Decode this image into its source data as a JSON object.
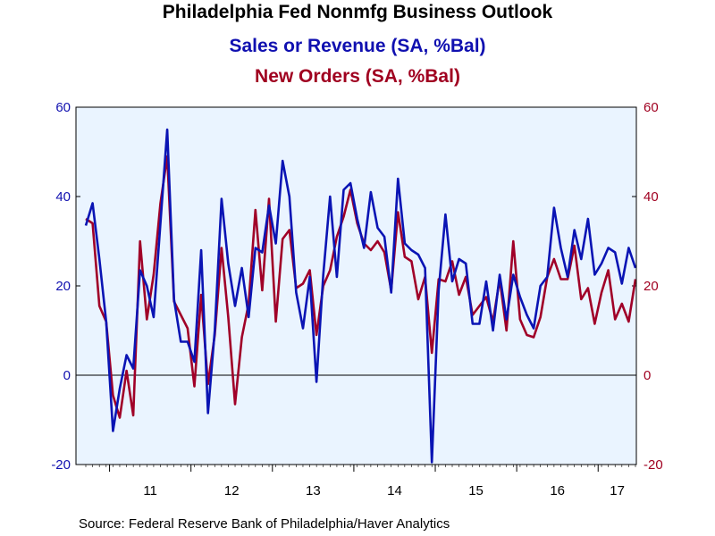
{
  "titles": {
    "main": "Philadelphia Fed Nonmfg Business Outlook",
    "series1": "Sales or Revenue (SA, %Bal)",
    "series2": "New Orders (SA, %Bal)"
  },
  "source": "Source:  Federal Reserve Bank of Philadelphia/Haver Analytics",
  "colors": {
    "sales": "#0a14b4",
    "orders": "#a00028",
    "background": "#eaf4ff"
  },
  "chart_data": {
    "type": "line",
    "x_start": "2010-09",
    "frequency": "monthly",
    "x_tick_labels": [
      "11",
      "12",
      "13",
      "14",
      "15",
      "16",
      "17"
    ],
    "ylim": [
      -20,
      60
    ],
    "y_ticks": [
      -20,
      0,
      20,
      40,
      60
    ],
    "y2_ticks": [
      -20,
      0,
      20,
      40,
      60
    ],
    "grid": false,
    "series": [
      {
        "name": "Sales or Revenue (SA, %Bal)",
        "axis": "left",
        "values": [
          33.5,
          38.5,
          26,
          12,
          -12.5,
          -3,
          4.5,
          1.5,
          23.5,
          20,
          13,
          34,
          55,
          17,
          7.5,
          7.5,
          3,
          28,
          -8.5,
          10,
          39.5,
          25,
          15.5,
          24,
          13,
          28.5,
          27.5,
          38,
          29.5,
          48,
          40,
          18.5,
          10.5,
          22,
          -1.5,
          22.5,
          40,
          22,
          41.5,
          43,
          35,
          28.5,
          41,
          33,
          31,
          18.5,
          44,
          29.5,
          28,
          27,
          24,
          -19.5,
          19,
          36,
          21,
          26,
          25,
          11.5,
          11.5,
          21,
          10,
          22.5,
          12.5,
          22.5,
          17.5,
          13.5,
          10.5,
          20,
          22,
          37.5,
          28.5,
          22,
          32.5,
          26,
          35,
          22.5,
          25,
          28.5,
          27.5,
          20.5,
          28.5,
          24
        ]
      },
      {
        "name": "New Orders (SA, %Bal)",
        "axis": "right",
        "values": [
          35,
          34,
          15.5,
          12,
          -4.5,
          -9.5,
          1,
          -9,
          30,
          12.5,
          22.5,
          38.5,
          49,
          16.5,
          13.5,
          10.5,
          -2.5,
          18,
          -2,
          9,
          28.5,
          13,
          -6.5,
          8.5,
          16,
          37,
          19,
          39.5,
          12,
          30.5,
          32.5,
          19.5,
          20.5,
          23.5,
          9,
          20,
          23.5,
          31,
          35.5,
          41.5,
          34,
          29.5,
          28,
          30,
          27.5,
          19,
          36.5,
          26.5,
          25.5,
          17,
          22,
          5,
          21.5,
          21,
          25.5,
          18,
          22,
          13.5,
          15.5,
          17.5,
          12,
          21.5,
          10,
          30,
          12.5,
          9,
          8.5,
          13,
          22,
          26,
          21.5,
          21.5,
          29,
          17,
          19.5,
          11.5,
          18.5,
          23.5,
          12.5,
          16,
          12,
          21.5
        ]
      }
    ]
  }
}
